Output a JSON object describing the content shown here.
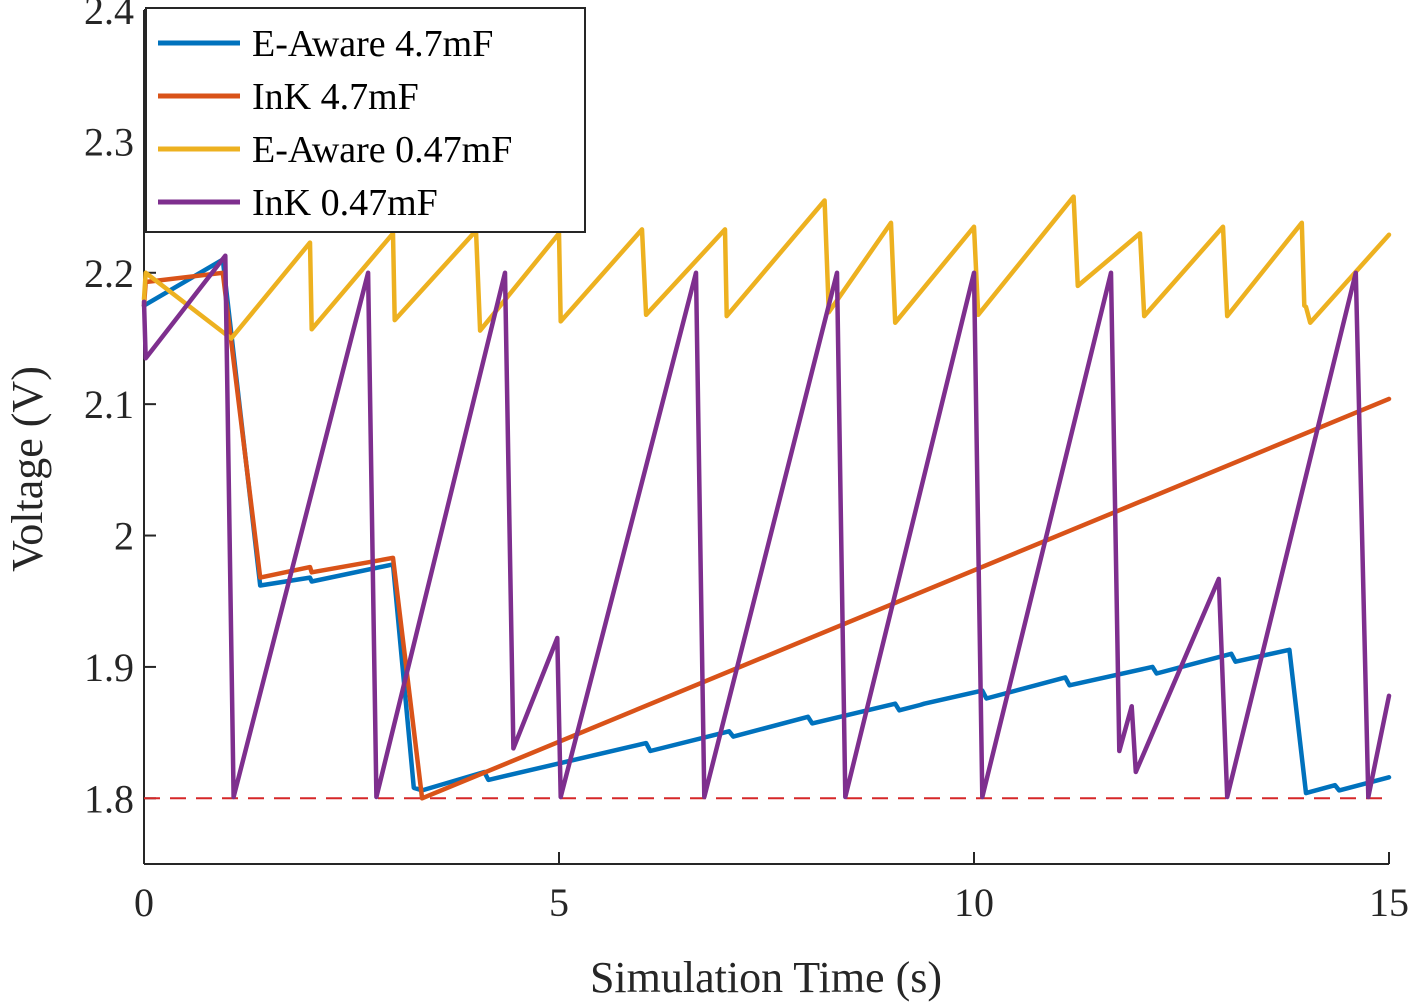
{
  "chart_data": {
    "type": "line",
    "title": "",
    "xlabel": "Simulation Time (s)",
    "ylabel": "Voltage (V)",
    "xlim": [
      0,
      15
    ],
    "ylim": [
      1.75,
      2.4
    ],
    "xticks": [
      0,
      5,
      10,
      15
    ],
    "xtick_labels": [
      "0",
      "5",
      "10",
      "15"
    ],
    "yticks": [
      1.8,
      1.9,
      2.0,
      2.1,
      2.2,
      2.3,
      2.4
    ],
    "ytick_labels": [
      "1.8",
      "1.9",
      "2",
      "2.1",
      "2.2",
      "2.3",
      "2.4"
    ],
    "grid": false,
    "legend_position": "top-left",
    "threshold": {
      "y": 1.8,
      "color": "#d62728",
      "style": "dashed"
    },
    "series": [
      {
        "name": "E-Aware 4.7mF",
        "color": "#0072BD",
        "x": [
          0,
          0.95,
          1.4,
          2.0,
          2.02,
          3.0,
          3.25,
          3.35,
          4.1,
          4.15,
          6.05,
          6.1,
          7.05,
          7.1,
          8.0,
          8.05,
          9.05,
          9.1,
          9.35,
          9.4,
          10.1,
          10.15,
          11.1,
          11.15,
          12.15,
          12.2,
          13.1,
          13.15,
          13.8,
          14.0,
          14.35,
          14.4,
          15.0
        ],
        "values": [
          2.175,
          2.21,
          1.962,
          1.968,
          1.965,
          1.978,
          1.808,
          1.806,
          1.82,
          1.814,
          1.842,
          1.836,
          1.851,
          1.847,
          1.862,
          1.857,
          1.872,
          1.867,
          1.871,
          1.872,
          1.882,
          1.876,
          1.892,
          1.886,
          1.9,
          1.895,
          1.91,
          1.904,
          1.913,
          1.804,
          1.81,
          1.806,
          1.816
        ]
      },
      {
        "name": "InK 4.7mF",
        "color": "#D95319",
        "x": [
          0,
          0.02,
          0.95,
          1.4,
          2.0,
          2.02,
          3.0,
          3.35,
          15.0
        ],
        "values": [
          2.175,
          2.193,
          2.2,
          1.968,
          1.976,
          1.972,
          1.983,
          1.8,
          2.104
        ]
      },
      {
        "name": "E-Aware 0.47mF",
        "color": "#EDB120",
        "x": [
          0,
          0.02,
          1.05,
          2.0,
          2.02,
          3.0,
          3.02,
          4.0,
          4.05,
          5.0,
          5.02,
          6.0,
          6.05,
          7.0,
          7.02,
          8.2,
          8.25,
          9.0,
          9.05,
          10.0,
          10.05,
          11.2,
          11.25,
          12.0,
          12.05,
          13.0,
          13.05,
          13.95,
          13.98,
          14.0,
          14.05,
          15.0
        ],
        "values": [
          2.18,
          2.2,
          2.15,
          2.223,
          2.157,
          2.23,
          2.164,
          2.232,
          2.156,
          2.23,
          2.163,
          2.233,
          2.168,
          2.233,
          2.167,
          2.255,
          2.17,
          2.238,
          2.162,
          2.235,
          2.168,
          2.258,
          2.19,
          2.23,
          2.167,
          2.235,
          2.167,
          2.238,
          2.175,
          2.174,
          2.162,
          2.229
        ]
      },
      {
        "name": "InK 0.47mF",
        "color": "#7E2F8E",
        "x": [
          0,
          0.02,
          0.98,
          1.08,
          2.7,
          2.8,
          4.35,
          4.45,
          4.98,
          5.02,
          6.65,
          6.75,
          8.35,
          8.45,
          10.0,
          10.1,
          11.65,
          11.75,
          11.9,
          11.95,
          12.95,
          13.05,
          14.6,
          14.75,
          15.0
        ],
        "values": [
          2.178,
          2.135,
          2.213,
          1.801,
          2.2,
          1.801,
          2.2,
          1.838,
          1.922,
          1.801,
          2.2,
          1.801,
          2.2,
          1.801,
          2.2,
          1.801,
          2.2,
          1.836,
          1.87,
          1.82,
          1.967,
          1.801,
          2.2,
          1.801,
          1.878
        ]
      }
    ]
  }
}
